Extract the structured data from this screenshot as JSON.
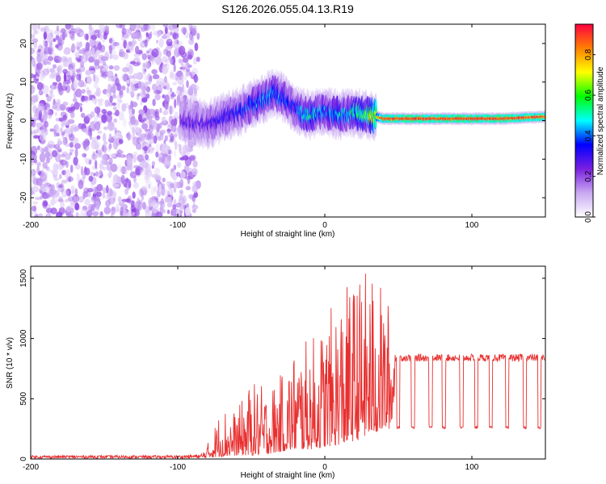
{
  "figure": {
    "title": "S126.2026.055.04.13.R19"
  },
  "chart_data": [
    {
      "type": "heatmap",
      "name": "spectrogram",
      "title": "S126.2026.055.04.13.R19",
      "xlabel": "Height of straight line (km)",
      "ylabel": "Frequency (Hz)",
      "xlim": [
        -200,
        150
      ],
      "ylim": [
        -25,
        25
      ],
      "x_ticks": [
        {
          "value": -200,
          "label": "-200"
        },
        {
          "value": -100,
          "label": "-100"
        },
        {
          "value": 0,
          "label": "0"
        },
        {
          "value": 100,
          "label": "100"
        }
      ],
      "y_ticks": [
        {
          "value": 20,
          "label": "20"
        },
        {
          "value": 10,
          "label": "10"
        },
        {
          "value": 0,
          "label": "0"
        },
        {
          "value": -10,
          "label": "-10"
        },
        {
          "value": -20,
          "label": "-20"
        }
      ],
      "colorbar": {
        "label": "Normalized spectral amplitude",
        "range": [
          0,
          0.95
        ],
        "colormap": [
          "#ffffff",
          "#c9a8f2",
          "#7a1fe0",
          "#0000ff",
          "#00ffff",
          "#00ff00",
          "#ffff00",
          "#ff8000",
          "#ff0040"
        ],
        "ticks": [
          {
            "value": 0.0,
            "label": "0.0"
          },
          {
            "value": 0.2,
            "label": "0.2"
          },
          {
            "value": 0.4,
            "label": "0.4"
          },
          {
            "value": 0.6,
            "label": "0.6"
          },
          {
            "value": 0.8,
            "label": "0.8"
          }
        ]
      },
      "noise_region": {
        "x_from": -200,
        "x_to": -86,
        "amplitude": 0.15
      },
      "signal_trace": {
        "x": [
          -98,
          -90,
          -80,
          -70,
          -60,
          -50,
          -40,
          -35,
          -30,
          -25,
          -20,
          -15,
          -10,
          0,
          10,
          20,
          30,
          35,
          40,
          60,
          80,
          100,
          120,
          150
        ],
        "freq": [
          0.5,
          -0.5,
          -1.0,
          0.5,
          2.0,
          4.0,
          6.0,
          7.0,
          6.5,
          5.0,
          3.0,
          2.0,
          1.5,
          2.5,
          1.5,
          2.0,
          1.5,
          1.0,
          0.5,
          0.5,
          0.5,
          0.5,
          0.5,
          1.0
        ],
        "amp": [
          0.22,
          0.25,
          0.25,
          0.28,
          0.3,
          0.35,
          0.38,
          0.38,
          0.35,
          0.32,
          0.3,
          0.42,
          0.45,
          0.38,
          0.4,
          0.45,
          0.55,
          0.7,
          0.85,
          0.9,
          0.88,
          0.9,
          0.88,
          0.85
        ]
      }
    },
    {
      "type": "line",
      "name": "snr",
      "xlabel": "Height of straight line (km)",
      "ylabel": "SNR (10 * v/v)",
      "xlim": [
        -200,
        150
      ],
      "ylim": [
        0,
        1600
      ],
      "color": "#e83030",
      "x_ticks": [
        {
          "value": -200,
          "label": "-200"
        },
        {
          "value": -100,
          "label": "-100"
        },
        {
          "value": 0,
          "label": "0"
        },
        {
          "value": 100,
          "label": "100"
        }
      ],
      "y_ticks": [
        {
          "value": 1500,
          "label": "1500"
        },
        {
          "value": 1000,
          "label": "1000"
        },
        {
          "value": 500,
          "label": "500"
        },
        {
          "value": 0,
          "label": "0"
        }
      ],
      "envelope": {
        "x": [
          -200,
          -150,
          -100,
          -85,
          -80,
          -70,
          -60,
          -50,
          -40,
          -30,
          -20,
          -10,
          0,
          10,
          20,
          30,
          35,
          40,
          45,
          50,
          150
        ],
        "max": [
          30,
          30,
          30,
          40,
          120,
          450,
          400,
          650,
          600,
          700,
          950,
          1000,
          1150,
          1400,
          1500,
          1600,
          1550,
          1400,
          1300,
          880,
          900
        ],
        "min": [
          5,
          5,
          5,
          5,
          10,
          20,
          30,
          30,
          40,
          60,
          80,
          80,
          100,
          120,
          150,
          200,
          220,
          250,
          250,
          800,
          800
        ]
      },
      "plateau_level": 840,
      "dips": [
        {
          "x": 50,
          "value": 250
        },
        {
          "x": 60,
          "value": 250
        },
        {
          "x": 72,
          "value": 260
        },
        {
          "x": 81,
          "value": 250
        },
        {
          "x": 93,
          "value": 250
        },
        {
          "x": 103,
          "value": 250
        },
        {
          "x": 113,
          "value": 250
        },
        {
          "x": 124,
          "value": 250
        },
        {
          "x": 136,
          "value": 250
        },
        {
          "x": 146,
          "value": 250
        }
      ]
    }
  ]
}
